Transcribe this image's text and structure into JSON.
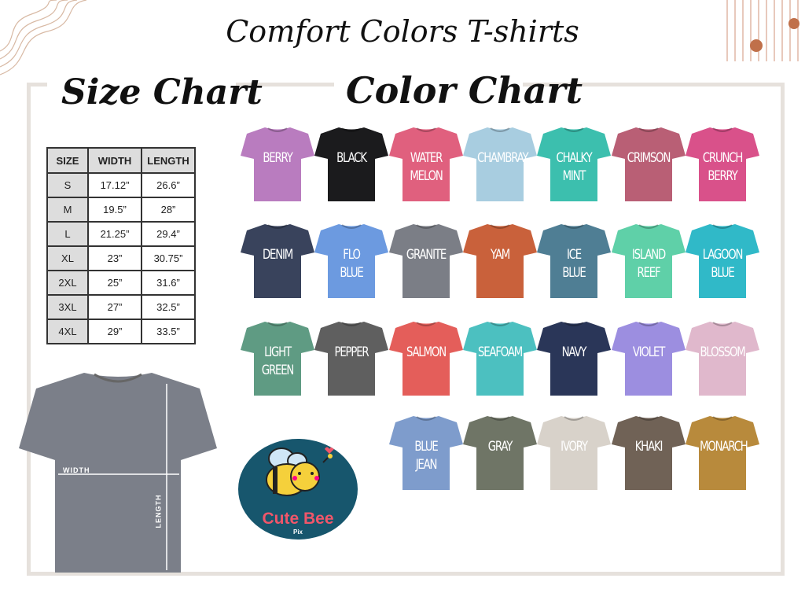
{
  "title": "Comfort Colors T-shirts",
  "size_heading": "Size Chart",
  "color_heading": "Color Chart",
  "size_table": {
    "headers": [
      "SIZE",
      "WIDTH",
      "LENGTH"
    ],
    "rows": [
      [
        "S",
        "17.12”",
        "26.6”"
      ],
      [
        "M",
        "19.5”",
        "28”"
      ],
      [
        "L",
        "21.25”",
        "29.4”"
      ],
      [
        "XL",
        "23”",
        "30.75”"
      ],
      [
        "2XL",
        "25”",
        "31.6”"
      ],
      [
        "3XL",
        "27”",
        "32.5”"
      ],
      [
        "4XL",
        "29”",
        "33.5”"
      ]
    ]
  },
  "measure": {
    "width_label": "WIDTH",
    "length_label": "LENGTH",
    "shirt_color": "#7b7f89"
  },
  "logo": {
    "name": "Cute Bee",
    "sub": "Pix"
  },
  "colors": [
    [
      {
        "name": "BERRY",
        "hex": "#b97cbf"
      },
      {
        "name": "BLACK",
        "hex": "#1b1b1d"
      },
      {
        "name": "WATER\nMELON",
        "hex": "#e0607e"
      },
      {
        "name": "CHAMBRAY",
        "hex": "#a8cde0"
      },
      {
        "name": "CHALKY\nMINT",
        "hex": "#3cbfae"
      },
      {
        "name": "CRIMSON",
        "hex": "#b95f75"
      },
      {
        "name": "CRUNCH\nBERRY",
        "hex": "#d9518a"
      }
    ],
    [
      {
        "name": "DENIM",
        "hex": "#39435c"
      },
      {
        "name": "FLO\nBLUE",
        "hex": "#6c9ae0"
      },
      {
        "name": "GRANITE",
        "hex": "#7b7e86"
      },
      {
        "name": "YAM",
        "hex": "#c9613b"
      },
      {
        "name": "ICE\nBLUE",
        "hex": "#4f7e94"
      },
      {
        "name": "ISLAND\nREEF",
        "hex": "#5fd0a8"
      },
      {
        "name": "LAGOON\nBLUE",
        "hex": "#30b9c8"
      }
    ],
    [
      {
        "name": "LIGHT\nGREEN",
        "hex": "#5f9b83"
      },
      {
        "name": "PEPPER",
        "hex": "#5f5f5f"
      },
      {
        "name": "SALMON",
        "hex": "#e45e5a"
      },
      {
        "name": "SEAFOAM",
        "hex": "#4cc0c0"
      },
      {
        "name": "NAVY",
        "hex": "#2a3658"
      },
      {
        "name": "VIOLET",
        "hex": "#9c8ee0"
      },
      {
        "name": "BLOSSOM",
        "hex": "#e0b8cc"
      }
    ],
    [
      {
        "name": "BLUE\nJEAN",
        "hex": "#7e9ccc"
      },
      {
        "name": "GRAY",
        "hex": "#6f7566"
      },
      {
        "name": "IVORY",
        "hex": "#d8d2ca"
      },
      {
        "name": "KHAKI",
        "hex": "#706256"
      },
      {
        "name": "MONARCH",
        "hex": "#b88a3c"
      }
    ]
  ]
}
